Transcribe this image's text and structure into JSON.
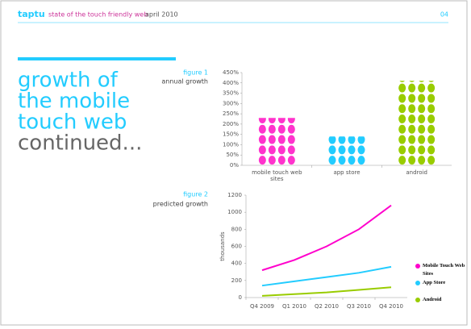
{
  "header": {
    "brand": "taptu",
    "title": "state of the touch friendly web",
    "date": "april 2010",
    "page": "04"
  },
  "heading": {
    "lines": [
      "growth of",
      "the mobile",
      "touch web",
      "continued..."
    ]
  },
  "chart_data": [
    {
      "type": "pictogram",
      "title": "figure 1",
      "subtitle": "annual growth",
      "categories": [
        "mobile touch web sites",
        "app store",
        "android"
      ],
      "values": [
        230,
        140,
        410
      ],
      "colors": [
        "#ff33cc",
        "#22ccff",
        "#99cc00"
      ],
      "ylim": [
        0,
        450
      ],
      "yticks": [
        {
          "value": 0,
          "label": "0%"
        },
        {
          "value": 50,
          "label": "50%"
        },
        {
          "value": 100,
          "label": "100%"
        },
        {
          "value": 150,
          "label": "150%"
        },
        {
          "value": 200,
          "label": "200%"
        },
        {
          "value": 250,
          "label": "250%"
        },
        {
          "value": 300,
          "label": "300%"
        },
        {
          "value": 350,
          "label": "350%"
        },
        {
          "value": 400,
          "label": "400%"
        },
        {
          "value": 450,
          "label": "450%"
        }
      ]
    },
    {
      "type": "line",
      "title": "figure 2",
      "subtitle": "predicted growth",
      "ylabel": "thousands",
      "categories": [
        "Q4 2009",
        "Q1 2010",
        "Q2 2010",
        "Q3 2010",
        "Q4 2010"
      ],
      "series": [
        {
          "name": "Mobile Touch Web Sites",
          "color": "#ff00cc",
          "values": [
            320,
            440,
            600,
            800,
            1080
          ]
        },
        {
          "name": "App Store",
          "color": "#22ccff",
          "values": [
            140,
            190,
            240,
            290,
            360
          ]
        },
        {
          "name": "Android",
          "color": "#99cc00",
          "values": [
            20,
            40,
            60,
            90,
            120
          ]
        }
      ],
      "ylim": [
        0,
        1200
      ],
      "yticks": [
        0,
        200,
        400,
        600,
        800,
        1000,
        1200
      ]
    }
  ]
}
